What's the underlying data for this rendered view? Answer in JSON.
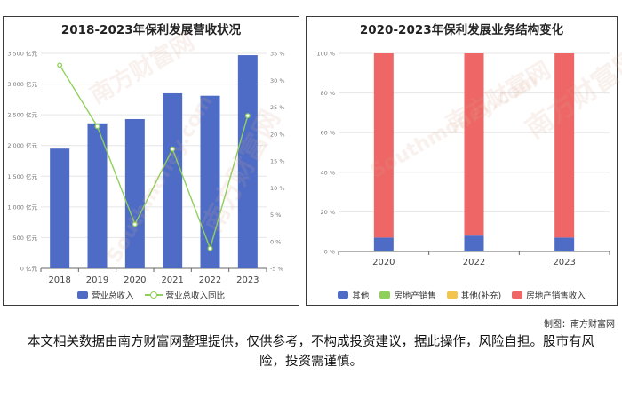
{
  "chart_data": [
    {
      "type": "bar",
      "title": "2018-2023年保利发展营收状况",
      "categories": [
        "2018",
        "2019",
        "2020",
        "2021",
        "2022",
        "2023"
      ],
      "series": [
        {
          "name": "营业总收入",
          "type": "bar",
          "axis": "left",
          "color": "#4e6cc6",
          "values": [
            1950,
            2360,
            2430,
            2850,
            2810,
            3470
          ]
        },
        {
          "name": "营业总收入同比",
          "type": "line",
          "axis": "right",
          "color": "#8ed05a",
          "values": [
            32.8,
            21.4,
            3.2,
            17.2,
            -1.3,
            23.4
          ]
        }
      ],
      "y_left": {
        "min": 0,
        "max": 3500,
        "step": 500,
        "unit": "亿元",
        "ticks": [
          "0 亿元",
          "500 亿元",
          "1,000 亿元",
          "1,500 亿元",
          "2,000 亿元",
          "2,500 亿元",
          "3,000 亿元",
          "3,500 亿元"
        ]
      },
      "y_right": {
        "min": -5,
        "max": 35,
        "step": 5,
        "ticks": [
          "-5 %",
          "0 %",
          "5 %",
          "10 %",
          "15 %",
          "20 %",
          "25 %",
          "30 %",
          "35 %"
        ]
      },
      "grid": true,
      "legend_position": "bottom"
    },
    {
      "type": "bar",
      "stacked": true,
      "title": "2020-2023年保利发展业务结构变化",
      "categories": [
        "2020",
        "2022",
        "2023"
      ],
      "series": [
        {
          "name": "其他",
          "color": "#4e6cc6",
          "values": [
            7,
            8,
            7
          ]
        },
        {
          "name": "房地产销售",
          "color": "#8ed05a",
          "values": [
            0,
            0,
            0
          ]
        },
        {
          "name": "其他(补充)",
          "color": "#f4c54c",
          "values": [
            0,
            0,
            0
          ]
        },
        {
          "name": "房地产销售收入",
          "color": "#ee6666",
          "values": [
            93,
            92,
            93
          ]
        }
      ],
      "y": {
        "min": 0,
        "max": 100,
        "step": 20,
        "ticks": [
          "0 %",
          "20 %",
          "40 %",
          "60 %",
          "80 %",
          "100 %"
        ]
      },
      "grid": true,
      "legend_position": "bottom"
    }
  ],
  "footer": {
    "credit": "制图：南方财富网",
    "disclaimer": "本文相关数据由南方财富网整理提供，仅供参考，不构成投资建议，据此操作，风险自担。股市有风险，投资需谨慎。"
  },
  "watermark": {
    "cn": "南方财富网",
    "en": "Southmoney.com"
  }
}
